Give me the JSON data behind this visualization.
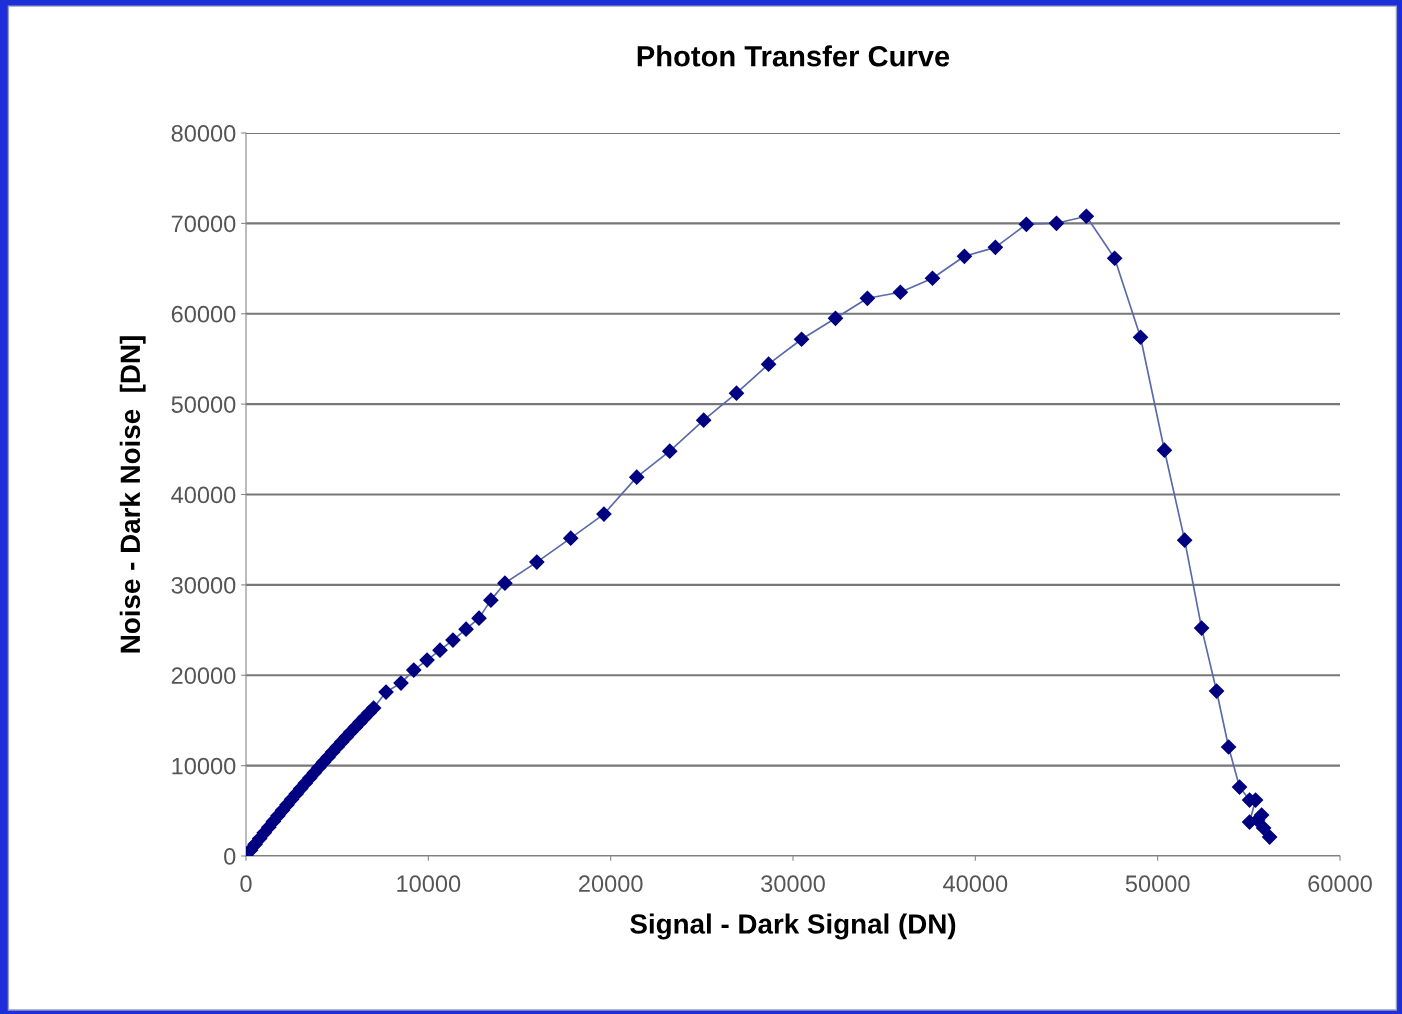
{
  "chart_data": {
    "type": "line",
    "title": "Photon Transfer Curve",
    "xlabel": "Signal - Dark Signal (DN)",
    "ylabel": "Noise - Dark Noise  [DN]",
    "x": [
      0,
      250,
      500,
      750,
      1000,
      1250,
      1500,
      1750,
      2000,
      2250,
      2500,
      2750,
      3000,
      3250,
      3500,
      3750,
      4000,
      4250,
      4500,
      4750,
      5000,
      5250,
      5500,
      5750,
      6000,
      6250,
      6500,
      6750,
      7000,
      7680,
      8500,
      9200,
      9930,
      10640,
      11350,
      12070,
      12780,
      13430,
      14200,
      15950,
      17810,
      19630,
      21430,
      23240,
      25100,
      26900,
      28660,
      30470,
      32330,
      34080,
      35890,
      37650,
      39400,
      41100,
      42800,
      44450,
      46090,
      47640,
      49060,
      50370,
      51480,
      52410,
      53230,
      53890,
      54490,
      55040,
      55370,
      55040,
      55480,
      55700,
      55810,
      56140
    ],
    "series": [
      {
        "color": "#000080",
        "values": [
          0,
          650,
          1290,
          1930,
          2560,
          3190,
          3820,
          4440,
          5050,
          5660,
          6270,
          6870,
          7460,
          8060,
          8640,
          9220,
          9800,
          10380,
          10940,
          11510,
          12070,
          12620,
          13170,
          13720,
          14260,
          14790,
          15320,
          15850,
          16370,
          18140,
          19130,
          20570,
          21680,
          22780,
          23890,
          25100,
          26320,
          28310,
          30190,
          32520,
          35170,
          37830,
          41920,
          44790,
          48220,
          51210,
          54420,
          57180,
          59500,
          61710,
          62380,
          63930,
          66360,
          67350,
          69900,
          70010,
          70790,
          66140,
          57400,
          44900,
          34950,
          25220,
          18250,
          12060,
          7630,
          6190,
          6190,
          3760,
          3980,
          4530,
          3100,
          2100
        ]
      }
    ],
    "xlim": [
      0,
      60000
    ],
    "xticks": [
      0,
      10000,
      20000,
      30000,
      40000,
      50000,
      60000
    ],
    "ylim": [
      0,
      80000
    ],
    "yticks": [
      0,
      10000,
      20000,
      30000,
      40000,
      50000,
      60000,
      70000,
      80000
    ],
    "grid": "y",
    "marker": "diamond",
    "line_style": "solid",
    "legend": false
  }
}
